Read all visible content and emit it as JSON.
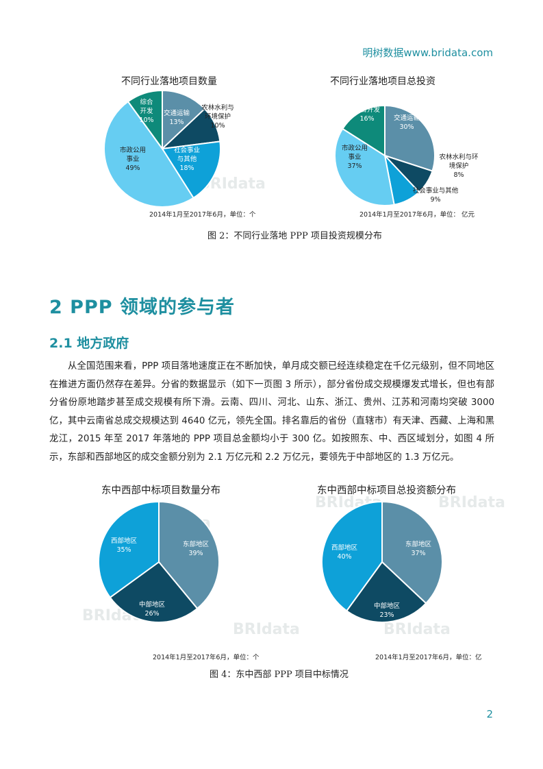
{
  "header": {
    "brand": "明树数据www.bridata.com"
  },
  "figure2": {
    "caption": "图 2：不同行业落地 PPP 项目投资规模分布"
  },
  "section": {
    "heading": "2   PPP 领域的参与者",
    "subheading": "2.1  地方政府",
    "paragraph": "从全国范围来看，PPP 项目落地速度正在不断加快，单月成交额已经连续稳定在千亿元级别，但不同地区在推进方面仍然存在差异。分省的数据显示（如下一页图 3 所示），部分省份成交规模爆发式增长，但也有部分省份原地踏步甚至成交规模有所下滑。云南、四川、河北、山东、浙江、贵州、江苏和河南均突破 3000 亿，其中云南省总成交规模达到 4640 亿元，领先全国。排名靠后的省份（直辖市）有天津、西藏、上海和黑龙江，2015 年至 2017 年落地的 PPP 项目总金额均小于 300 亿。如按照东、中、西区域划分，如图 4 所示，东部和西部地区的成交金额分别为 2.1 万亿元和 2.2 万亿元，要领先于中部地区的 1.3 万亿元。"
  },
  "figure4": {
    "caption": "图 4：东中西部 PPP 项目中标情况"
  },
  "page_number": "2",
  "watermark": "BRIdata 明树数据",
  "chart_data": [
    {
      "type": "pie",
      "title": "不同行业落地项目数量",
      "note": "2014年1月至2017年6月，单位：个",
      "slices": [
        {
          "label": "交通运输",
          "value": 13,
          "color": "#5b8fa8"
        },
        {
          "label": "农林水利与环境保护",
          "value": 10,
          "color": "#0e4a63"
        },
        {
          "label": "社会事业与其他",
          "value": 18,
          "color": "#0ea1d8"
        },
        {
          "label": "市政公用事业",
          "value": 49,
          "color": "#66cdf2"
        },
        {
          "label": "综合开发",
          "value": 10,
          "color": "#0e8a7a"
        }
      ]
    },
    {
      "type": "pie",
      "title": "不同行业落地项目总投资",
      "note": "2014年1月至2017年6月，单位： 亿元",
      "slices": [
        {
          "label": "交通运输",
          "value": 30,
          "color": "#5b8fa8"
        },
        {
          "label": "农林水利与环境保护",
          "value": 8,
          "color": "#0e4a63"
        },
        {
          "label": "社会事业与其他",
          "value": 9,
          "color": "#0ea1d8"
        },
        {
          "label": "市政公用事业",
          "value": 37,
          "color": "#66cdf2"
        },
        {
          "label": "综合开发",
          "value": 16,
          "color": "#0e8a7a"
        }
      ]
    },
    {
      "type": "pie",
      "title": "东中西部中标项目数量分布",
      "note": "2014年1月至2017年6月，单位：个",
      "slices": [
        {
          "label": "东部地区",
          "value": 39,
          "color": "#5b8fa8"
        },
        {
          "label": "中部地区",
          "value": 26,
          "color": "#0e4a63"
        },
        {
          "label": "西部地区",
          "value": 35,
          "color": "#0ea1d8"
        }
      ]
    },
    {
      "type": "pie",
      "title": "东中西部中标项目总投资额分布",
      "note": "2014年1月至2017年6月，单位：亿",
      "slices": [
        {
          "label": "东部地区",
          "value": 37,
          "color": "#5b8fa8"
        },
        {
          "label": "中部地区",
          "value": 23,
          "color": "#0e4a63"
        },
        {
          "label": "西部地区",
          "value": 40,
          "color": "#0ea1d8"
        }
      ]
    }
  ]
}
